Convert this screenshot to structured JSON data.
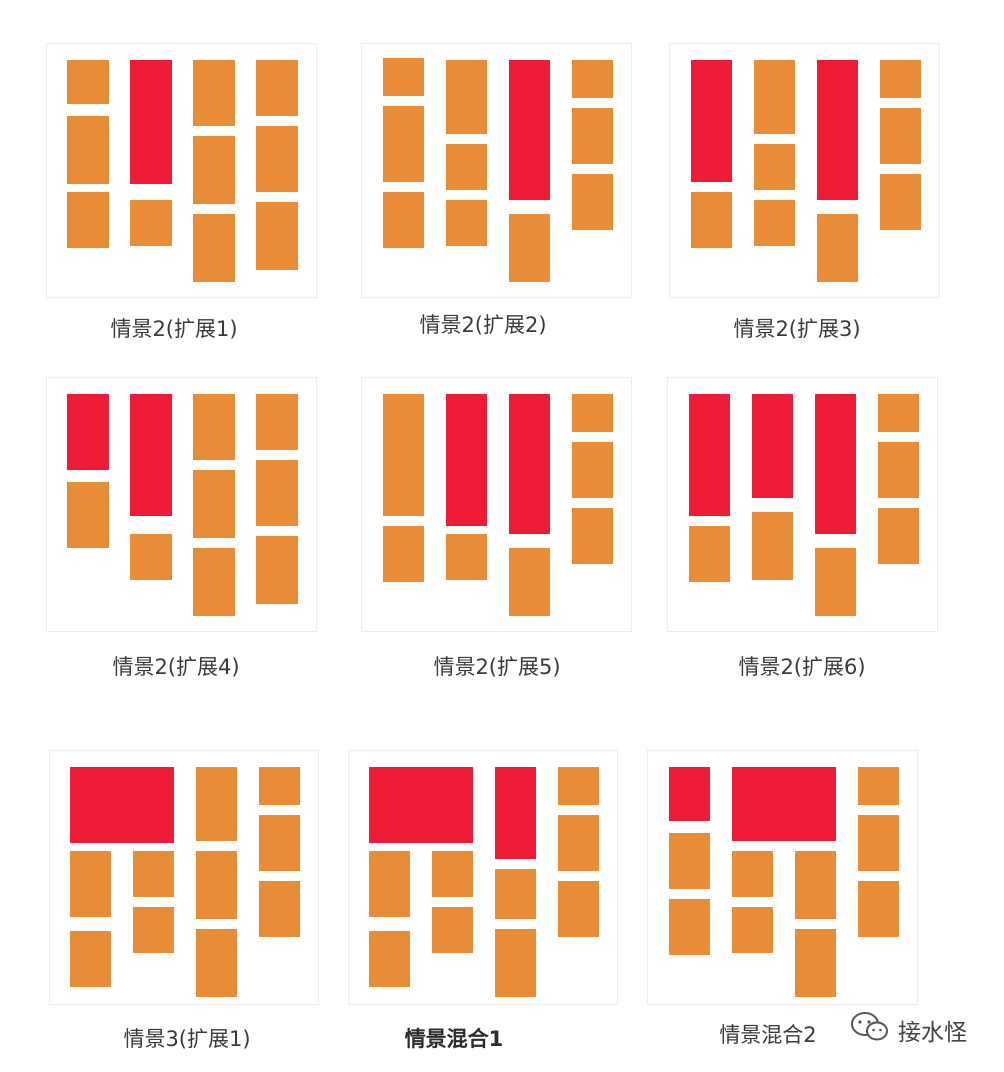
{
  "colors": {
    "orange": "#E98C38",
    "red": "#EE1B37",
    "panel_border": "#ececec"
  },
  "captions": [
    "情景2(扩展1)",
    "情景2(扩展2)",
    "情景2(扩展3)",
    "情景2(扩展4)",
    "情景2(扩展5)",
    "情景2(扩展6)",
    "情景3(扩展1)",
    "情景混合1",
    "情景混合2"
  ],
  "watermark": {
    "icon": "wechat-icon",
    "text": "接水怪"
  }
}
